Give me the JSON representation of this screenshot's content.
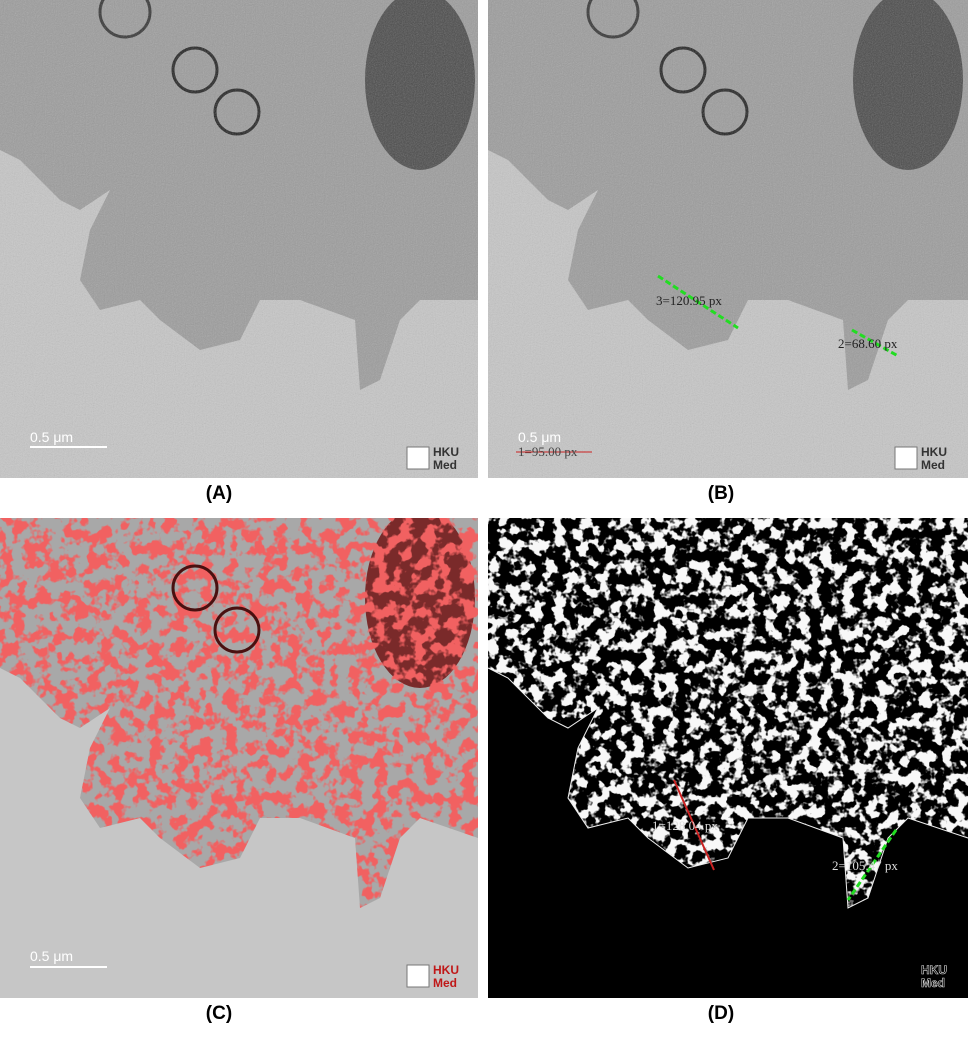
{
  "captions": {
    "a": "(A)",
    "b": "(B)",
    "c": "(C)",
    "d": "(D)"
  },
  "scale_bar_label": "0.5 μm",
  "logo": {
    "line1": "HKU",
    "line2": "Med"
  },
  "panel_b": {
    "measurements": [
      {
        "label": "3=120.95 px",
        "color": "#22dd22"
      },
      {
        "label": "2=68.60 px",
        "color": "#22dd22"
      },
      {
        "label": "1=95.00 px",
        "color": "#cc2222"
      }
    ]
  },
  "panel_d": {
    "measurements": [
      {
        "label": "1=128.04 px",
        "color": "#cc2222"
      },
      {
        "label": "2=105.47 px",
        "color": "#22dd22"
      }
    ]
  },
  "colors": {
    "tissue": "#8f8f8f",
    "background": "#c9c9c9",
    "contour_red": "#e02020",
    "edge_white": "#f0f0f0",
    "black": "#000000"
  }
}
